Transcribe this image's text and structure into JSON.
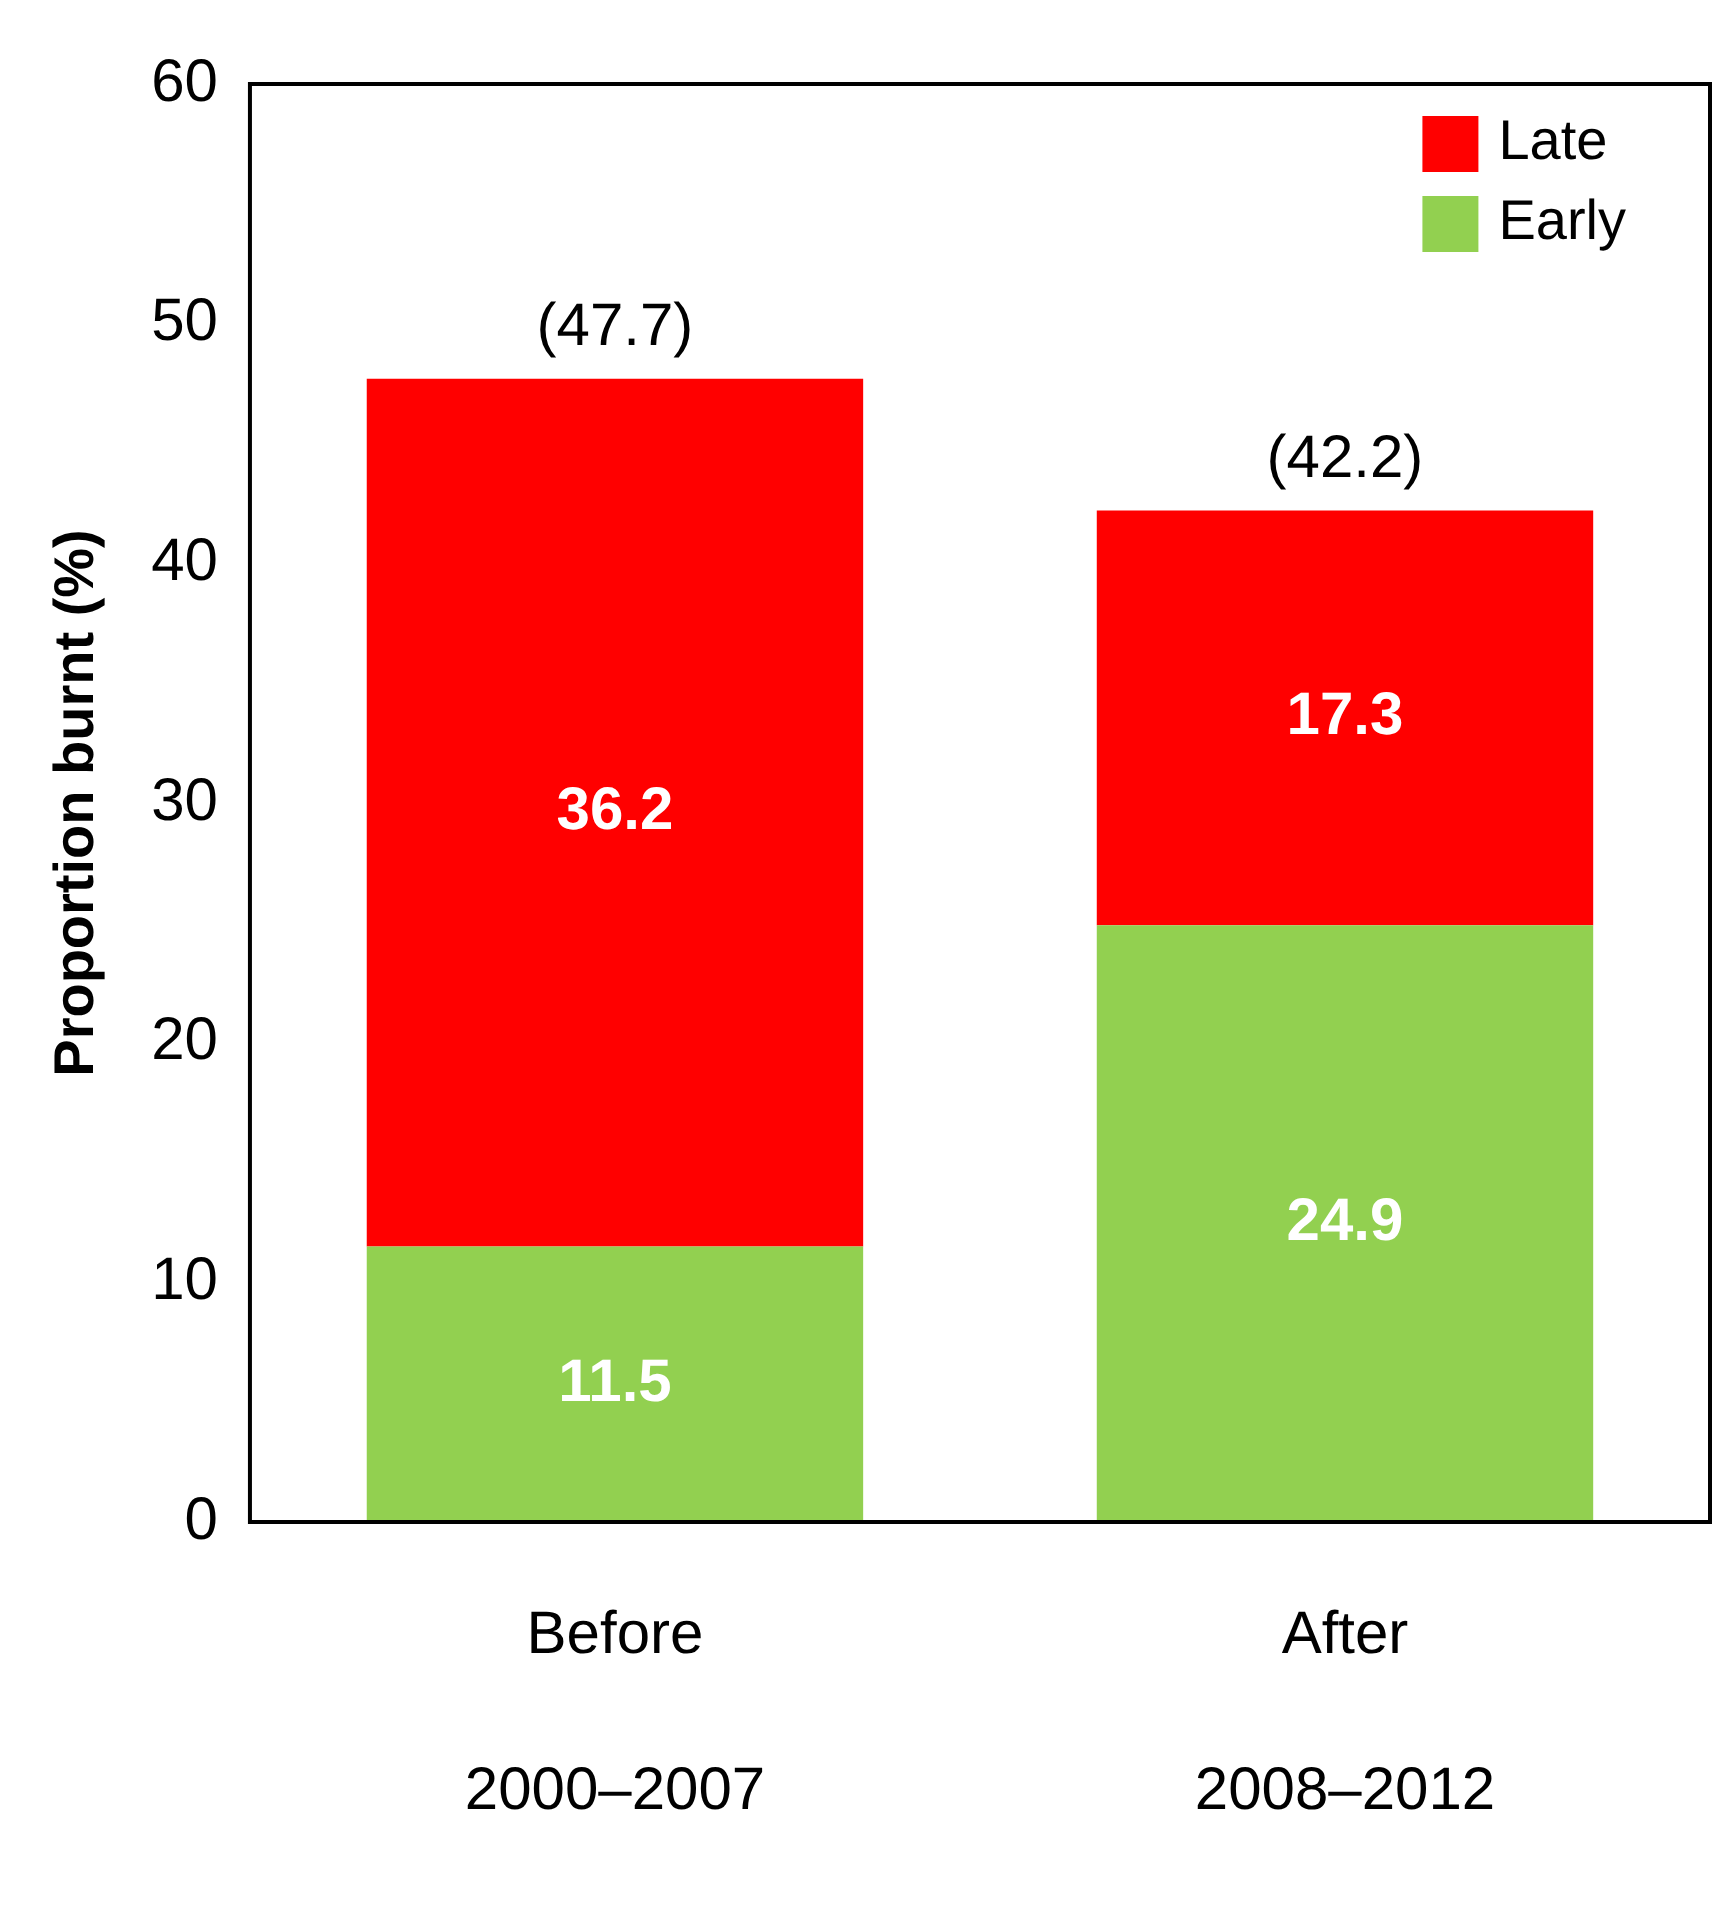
{
  "chart_data": {
    "type": "bar",
    "stacked": true,
    "ylabel": "Proportion burnt (%)",
    "categories": [
      "Before\n2000–2007",
      "After\n2008–2012"
    ],
    "series": [
      {
        "name": "Early",
        "color": "#92d050",
        "values": [
          11.5,
          24.9
        ]
      },
      {
        "name": "Late",
        "color": "#ff0000",
        "values": [
          36.2,
          17.3
        ]
      }
    ],
    "totals": [
      "(47.7)",
      "(42.2)"
    ],
    "data_labels": true,
    "ylim": [
      0,
      60
    ],
    "yticks": [
      0,
      10,
      20,
      30,
      40,
      50,
      60
    ],
    "grid": false,
    "legend": "top right"
  }
}
